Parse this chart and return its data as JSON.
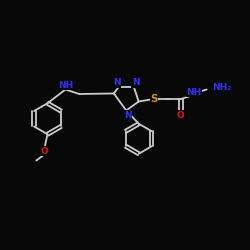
{
  "bg": "#080808",
  "bc": "#cccccc",
  "NC": "#3333ee",
  "OC": "#cc2200",
  "SC": "#cc9900",
  "lw": 1.3,
  "fs": 6.5,
  "figsize": [
    2.5,
    2.5
  ],
  "dpi": 100,
  "xlim": [
    0,
    10
  ],
  "ylim": [
    0,
    10
  ]
}
